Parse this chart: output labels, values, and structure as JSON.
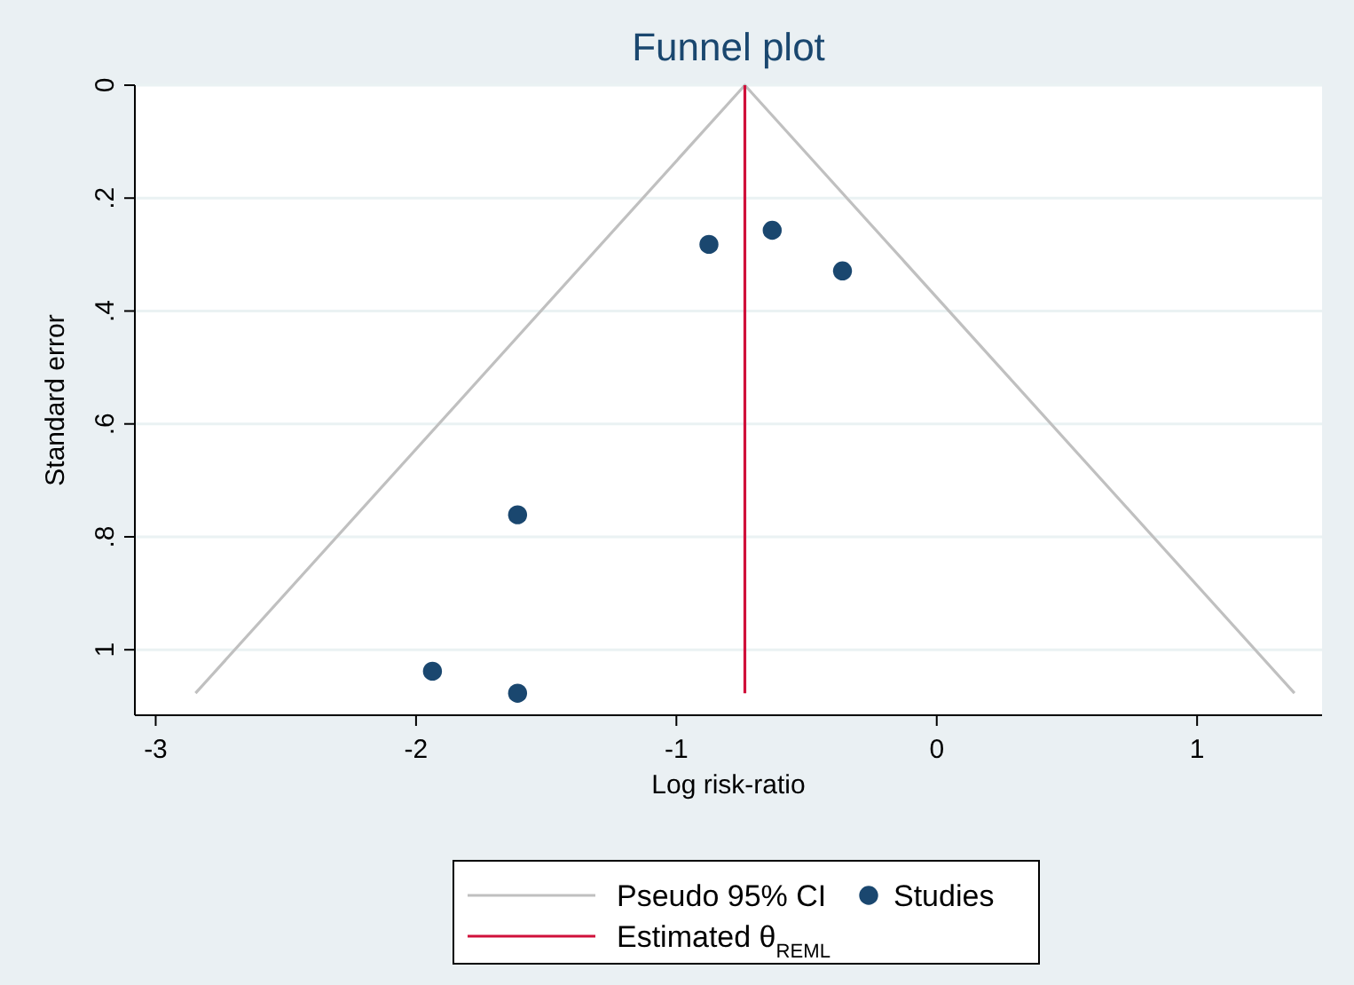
{
  "chart_data": {
    "type": "scatter",
    "title": "Funnel plot",
    "xlabel": "Log risk-ratio",
    "ylabel": "Standard error",
    "xlim": [
      -3.08,
      1.48
    ],
    "xticks": [
      -3,
      -2,
      -1,
      0,
      1
    ],
    "ylim": [
      1.116,
      0
    ],
    "yticks": [
      0,
      {
        "value": 0.2,
        "label": ".2"
      },
      {
        "value": 0.4,
        "label": ".4"
      },
      {
        "value": 0.6,
        "label": ".6"
      },
      {
        "value": 0.8,
        "label": ".8"
      },
      1
    ],
    "grid": "y",
    "legend": "bottom",
    "series": [
      {
        "name": "Pseudo 95% CI",
        "type": "line",
        "color": "#c0c0c0",
        "x": [
          -2.847,
          -0.737,
          1.374
        ],
        "values": [
          1.077,
          0,
          1.077
        ]
      },
      {
        "name": "Studies",
        "marker": "circle",
        "color": "#1a476f",
        "x": [
          -0.875,
          -0.632,
          -0.362,
          -1.61,
          -1.937,
          -1.61
        ],
        "values": [
          0.282,
          0.257,
          0.329,
          0.761,
          1.038,
          1.077
        ]
      },
      {
        "name": "Estimated θ$_{REML}$",
        "type": "line",
        "color": "#d0103a",
        "x": [
          -0.737,
          -0.737
        ],
        "values": [
          0,
          1.077
        ]
      }
    ]
  }
}
